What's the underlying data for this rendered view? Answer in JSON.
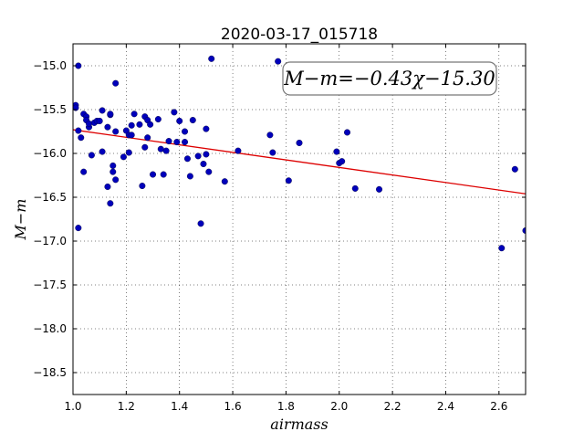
{
  "chart_data": {
    "type": "scatter",
    "title": "2020-03-17_015718",
    "xlabel": "airmass",
    "ylabel": "M−m",
    "xlim": [
      1.0,
      2.7
    ],
    "ylim": [
      -18.75,
      -14.75
    ],
    "y_inverted": true,
    "xticks": [
      "1.0",
      "1.2",
      "1.4",
      "1.6",
      "1.8",
      "2.0",
      "2.2",
      "2.4",
      "2.6"
    ],
    "yticks": [
      "−15.0",
      "−15.5",
      "−16.0",
      "−16.5",
      "−17.0",
      "−17.5",
      "−18.0",
      "−18.5"
    ],
    "grid": true,
    "annotation": "M−m=−0.43χ−15.30",
    "fit": {
      "slope": -0.43,
      "intercept": -15.3,
      "color": "#dd0000"
    },
    "marker_color": "#0000bb",
    "points": [
      [
        1.01,
        -15.45
      ],
      [
        1.01,
        -15.48
      ],
      [
        1.02,
        -15.0
      ],
      [
        1.02,
        -16.85
      ],
      [
        1.02,
        -15.74
      ],
      [
        1.03,
        -15.82
      ],
      [
        1.04,
        -15.55
      ],
      [
        1.04,
        -16.21
      ],
      [
        1.05,
        -15.58
      ],
      [
        1.05,
        -15.62
      ],
      [
        1.06,
        -15.7
      ],
      [
        1.06,
        -15.66
      ],
      [
        1.07,
        -16.02
      ],
      [
        1.08,
        -15.65
      ],
      [
        1.09,
        -15.63
      ],
      [
        1.1,
        -15.63
      ],
      [
        1.11,
        -15.98
      ],
      [
        1.11,
        -15.51
      ],
      [
        1.13,
        -15.7
      ],
      [
        1.13,
        -16.38
      ],
      [
        1.14,
        -15.56
      ],
      [
        1.14,
        -16.57
      ],
      [
        1.14,
        -15.55
      ],
      [
        1.15,
        -16.14
      ],
      [
        1.15,
        -16.21
      ],
      [
        1.16,
        -16.3
      ],
      [
        1.16,
        -15.75
      ],
      [
        1.16,
        -15.2
      ],
      [
        1.19,
        -16.04
      ],
      [
        1.2,
        -15.74
      ],
      [
        1.21,
        -15.79
      ],
      [
        1.21,
        -15.99
      ],
      [
        1.22,
        -15.68
      ],
      [
        1.22,
        -15.79
      ],
      [
        1.23,
        -15.55
      ],
      [
        1.25,
        -15.67
      ],
      [
        1.26,
        -16.37
      ],
      [
        1.27,
        -15.93
      ],
      [
        1.27,
        -15.58
      ],
      [
        1.28,
        -15.82
      ],
      [
        1.28,
        -15.62
      ],
      [
        1.29,
        -15.67
      ],
      [
        1.3,
        -16.24
      ],
      [
        1.32,
        -15.61
      ],
      [
        1.33,
        -15.95
      ],
      [
        1.34,
        -16.24
      ],
      [
        1.35,
        -15.97
      ],
      [
        1.36,
        -15.86
      ],
      [
        1.38,
        -15.53
      ],
      [
        1.39,
        -15.87
      ],
      [
        1.4,
        -15.63
      ],
      [
        1.42,
        -15.75
      ],
      [
        1.42,
        -15.87
      ],
      [
        1.43,
        -16.06
      ],
      [
        1.44,
        -16.26
      ],
      [
        1.45,
        -15.62
      ],
      [
        1.47,
        -16.03
      ],
      [
        1.48,
        -16.8
      ],
      [
        1.49,
        -16.12
      ],
      [
        1.5,
        -16.01
      ],
      [
        1.5,
        -15.72
      ],
      [
        1.51,
        -16.21
      ],
      [
        1.52,
        -14.92
      ],
      [
        1.57,
        -16.32
      ],
      [
        1.62,
        -15.97
      ],
      [
        1.74,
        -15.79
      ],
      [
        1.75,
        -15.99
      ],
      [
        1.77,
        -14.95
      ],
      [
        1.81,
        -16.31
      ],
      [
        1.85,
        -15.88
      ],
      [
        1.99,
        -15.98
      ],
      [
        2.0,
        -16.11
      ],
      [
        2.01,
        -16.09
      ],
      [
        2.03,
        -15.76
      ],
      [
        2.06,
        -16.4
      ],
      [
        2.15,
        -16.41
      ],
      [
        2.61,
        -17.08
      ],
      [
        2.66,
        -16.18
      ],
      [
        2.7,
        -16.88
      ]
    ]
  }
}
